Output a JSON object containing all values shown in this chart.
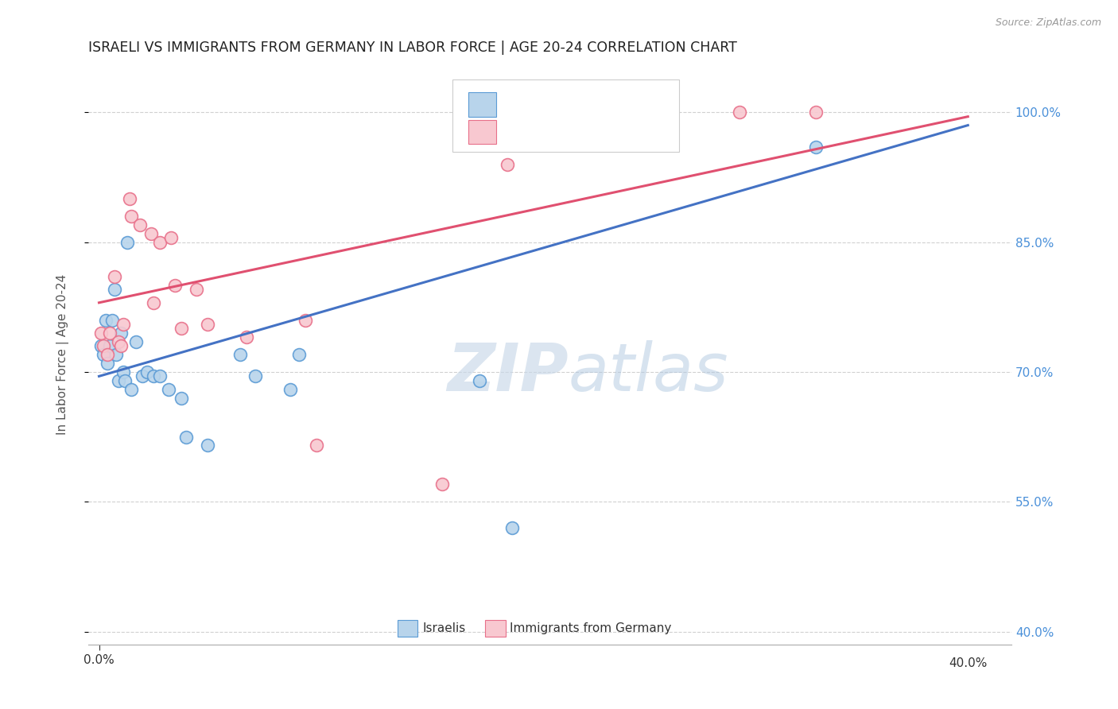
{
  "title": "ISRAELI VS IMMIGRANTS FROM GERMANY IN LABOR FORCE | AGE 20-24 CORRELATION CHART",
  "source": "Source: ZipAtlas.com",
  "ylabel": "In Labor Force | Age 20-24",
  "xlim": [
    -0.005,
    0.42
  ],
  "ylim": [
    0.385,
    1.055
  ],
  "xticks": [
    0.0,
    0.4
  ],
  "xticklabels": [
    "0.0%",
    "40.0%"
  ],
  "yticks": [
    0.4,
    0.55,
    0.7,
    0.85,
    1.0
  ],
  "yticklabels": [
    "40.0%",
    "55.0%",
    "70.0%",
    "85.0%",
    "100.0%"
  ],
  "watermark_zip": "ZIP",
  "watermark_atlas": "atlas",
  "blue_fill": "#b8d4eb",
  "blue_edge": "#5b9bd5",
  "pink_fill": "#f8c8d0",
  "pink_edge": "#e8708a",
  "blue_line_color": "#4472c4",
  "pink_line_color": "#e05070",
  "israelis_x": [
    0.001,
    0.002,
    0.003,
    0.004,
    0.005,
    0.006,
    0.007,
    0.008,
    0.009,
    0.01,
    0.011,
    0.012,
    0.013,
    0.015,
    0.017,
    0.02,
    0.022,
    0.025,
    0.028,
    0.032,
    0.038,
    0.04,
    0.05,
    0.065,
    0.072,
    0.088,
    0.092,
    0.175,
    0.19,
    0.33
  ],
  "israelis_y": [
    0.73,
    0.72,
    0.76,
    0.71,
    0.73,
    0.76,
    0.795,
    0.72,
    0.69,
    0.745,
    0.7,
    0.69,
    0.85,
    0.68,
    0.735,
    0.695,
    0.7,
    0.695,
    0.695,
    0.68,
    0.67,
    0.625,
    0.615,
    0.72,
    0.695,
    0.68,
    0.72,
    0.69,
    0.52,
    0.96
  ],
  "germany_x": [
    0.001,
    0.002,
    0.004,
    0.005,
    0.007,
    0.009,
    0.01,
    0.011,
    0.014,
    0.015,
    0.019,
    0.024,
    0.025,
    0.028,
    0.033,
    0.035,
    0.038,
    0.045,
    0.05,
    0.068,
    0.095,
    0.1,
    0.158,
    0.188,
    0.2,
    0.295,
    0.33
  ],
  "germany_y": [
    0.745,
    0.73,
    0.72,
    0.745,
    0.81,
    0.735,
    0.73,
    0.755,
    0.9,
    0.88,
    0.87,
    0.86,
    0.78,
    0.85,
    0.855,
    0.8,
    0.75,
    0.795,
    0.755,
    0.74,
    0.76,
    0.615,
    0.57,
    0.94,
    1.0,
    1.0,
    1.0
  ],
  "blue_trend_x": [
    0.0,
    0.4
  ],
  "blue_trend_y": [
    0.695,
    0.985
  ],
  "pink_trend_x": [
    0.0,
    0.4
  ],
  "pink_trend_y": [
    0.78,
    0.995
  ],
  "background_color": "#ffffff",
  "grid_color": "#d0d0d0",
  "title_color": "#222222",
  "axis_label_color": "#555555",
  "right_axis_color": "#4a90d9",
  "bottom_label_blue": "Israelis",
  "bottom_label_pink": "Immigrants from Germany"
}
